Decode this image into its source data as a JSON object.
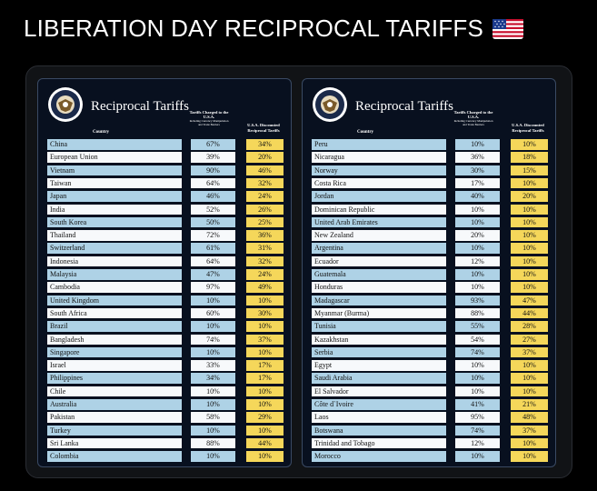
{
  "headline": "LIBERATION DAY RECIPROCAL TARIFFS",
  "colors": {
    "blue_row": "#aed2e6",
    "white_row": "#f7f9fb",
    "discount_cell": "#f5d75a",
    "panel": "#08101f"
  },
  "panels": [
    {
      "title": "Reciprocal Tariffs",
      "col_country": "Country",
      "col_charged_main": "Tariffs Charged to the U.S.A.",
      "col_charged_sub": "Including Currency Manipulation and Trade Barriers",
      "col_discounted": "U.S.A. Discounted Reciprocal Tariffs",
      "rows": [
        {
          "country": "China",
          "charged": "67%",
          "discounted": "34%"
        },
        {
          "country": "European Union",
          "charged": "39%",
          "discounted": "20%"
        },
        {
          "country": "Vietnam",
          "charged": "90%",
          "discounted": "46%"
        },
        {
          "country": "Taiwan",
          "charged": "64%",
          "discounted": "32%"
        },
        {
          "country": "Japan",
          "charged": "46%",
          "discounted": "24%"
        },
        {
          "country": "India",
          "charged": "52%",
          "discounted": "26%"
        },
        {
          "country": "South Korea",
          "charged": "50%",
          "discounted": "25%"
        },
        {
          "country": "Thailand",
          "charged": "72%",
          "discounted": "36%"
        },
        {
          "country": "Switzerland",
          "charged": "61%",
          "discounted": "31%"
        },
        {
          "country": "Indonesia",
          "charged": "64%",
          "discounted": "32%"
        },
        {
          "country": "Malaysia",
          "charged": "47%",
          "discounted": "24%"
        },
        {
          "country": "Cambodia",
          "charged": "97%",
          "discounted": "49%"
        },
        {
          "country": "United Kingdom",
          "charged": "10%",
          "discounted": "10%"
        },
        {
          "country": "South Africa",
          "charged": "60%",
          "discounted": "30%"
        },
        {
          "country": "Brazil",
          "charged": "10%",
          "discounted": "10%"
        },
        {
          "country": "Bangladesh",
          "charged": "74%",
          "discounted": "37%"
        },
        {
          "country": "Singapore",
          "charged": "10%",
          "discounted": "10%"
        },
        {
          "country": "Israel",
          "charged": "33%",
          "discounted": "17%"
        },
        {
          "country": "Philippines",
          "charged": "34%",
          "discounted": "17%"
        },
        {
          "country": "Chile",
          "charged": "10%",
          "discounted": "10%"
        },
        {
          "country": "Australia",
          "charged": "10%",
          "discounted": "10%"
        },
        {
          "country": "Pakistan",
          "charged": "58%",
          "discounted": "29%"
        },
        {
          "country": "Turkey",
          "charged": "10%",
          "discounted": "10%"
        },
        {
          "country": "Sri Lanka",
          "charged": "88%",
          "discounted": "44%"
        },
        {
          "country": "Colombia",
          "charged": "10%",
          "discounted": "10%"
        }
      ]
    },
    {
      "title": "Reciprocal Tariffs",
      "col_country": "Country",
      "col_charged_main": "Tariffs Charged to the U.S.A.",
      "col_charged_sub": "Including Currency Manipulation and Trade Barriers",
      "col_discounted": "U.S.A. Discounted Reciprocal Tariffs",
      "rows": [
        {
          "country": "Peru",
          "charged": "10%",
          "discounted": "10%"
        },
        {
          "country": "Nicaragua",
          "charged": "36%",
          "discounted": "18%"
        },
        {
          "country": "Norway",
          "charged": "30%",
          "discounted": "15%"
        },
        {
          "country": "Costa Rica",
          "charged": "17%",
          "discounted": "10%"
        },
        {
          "country": "Jordan",
          "charged": "40%",
          "discounted": "20%"
        },
        {
          "country": "Dominican Republic",
          "charged": "10%",
          "discounted": "10%"
        },
        {
          "country": "United Arab Emirates",
          "charged": "10%",
          "discounted": "10%"
        },
        {
          "country": "New Zealand",
          "charged": "20%",
          "discounted": "10%"
        },
        {
          "country": "Argentina",
          "charged": "10%",
          "discounted": "10%"
        },
        {
          "country": "Ecuador",
          "charged": "12%",
          "discounted": "10%"
        },
        {
          "country": "Guatemala",
          "charged": "10%",
          "discounted": "10%"
        },
        {
          "country": "Honduras",
          "charged": "10%",
          "discounted": "10%"
        },
        {
          "country": "Madagascar",
          "charged": "93%",
          "discounted": "47%"
        },
        {
          "country": "Myanmar (Burma)",
          "charged": "88%",
          "discounted": "44%"
        },
        {
          "country": "Tunisia",
          "charged": "55%",
          "discounted": "28%"
        },
        {
          "country": "Kazakhstan",
          "charged": "54%",
          "discounted": "27%"
        },
        {
          "country": "Serbia",
          "charged": "74%",
          "discounted": "37%"
        },
        {
          "country": "Egypt",
          "charged": "10%",
          "discounted": "10%"
        },
        {
          "country": "Saudi Arabia",
          "charged": "10%",
          "discounted": "10%"
        },
        {
          "country": "El Salvador",
          "charged": "10%",
          "discounted": "10%"
        },
        {
          "country": "Côte d`Ivoire",
          "charged": "41%",
          "discounted": "21%"
        },
        {
          "country": "Laos",
          "charged": "95%",
          "discounted": "48%"
        },
        {
          "country": "Botswana",
          "charged": "74%",
          "discounted": "37%"
        },
        {
          "country": "Trinidad and Tobago",
          "charged": "12%",
          "discounted": "10%"
        },
        {
          "country": "Morocco",
          "charged": "10%",
          "discounted": "10%"
        }
      ]
    }
  ]
}
